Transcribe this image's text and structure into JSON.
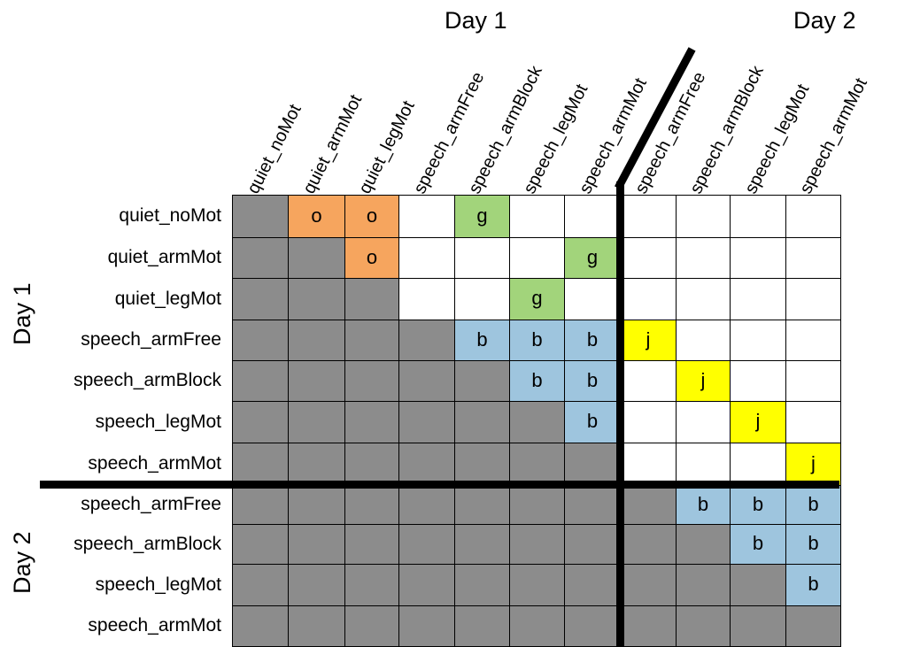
{
  "day_titles": {
    "top_day1": "Day 1",
    "top_day2": "Day 2",
    "left_day1": "Day 1",
    "left_day2": "Day 2"
  },
  "columns": [
    "quiet_noMot",
    "quiet_armMot",
    "quiet_legMot",
    "speech_armFree",
    "speech_armBlock",
    "speech_legMot",
    "speech_armMot",
    "speech_armFree",
    "speech_armBlock",
    "speech_legMot",
    "speech_armMot"
  ],
  "rows": [
    "quiet_noMot",
    "quiet_armMot",
    "quiet_legMot",
    "speech_armFree",
    "speech_armBlock",
    "speech_legMot",
    "speech_armMot",
    "speech_armFree",
    "speech_armBlock",
    "speech_legMot",
    "speech_armMot"
  ],
  "colors": {
    "gray": "#8c8c8c",
    "white": "#ffffff",
    "o": "#f6a55e",
    "g": "#a2d47b",
    "b": "#9ec5de",
    "j": "#ffff00"
  },
  "matrix": [
    [
      "x",
      "o",
      "o",
      "",
      "g",
      "",
      "",
      "",
      "",
      "",
      ""
    ],
    [
      "x",
      "x",
      "o",
      "",
      "",
      "",
      "g",
      "",
      "",
      "",
      ""
    ],
    [
      "x",
      "x",
      "x",
      "",
      "",
      "g",
      "",
      "",
      "",
      "",
      ""
    ],
    [
      "x",
      "x",
      "x",
      "x",
      "b",
      "b",
      "b",
      "j",
      "",
      "",
      ""
    ],
    [
      "x",
      "x",
      "x",
      "x",
      "x",
      "b",
      "b",
      "",
      "j",
      "",
      ""
    ],
    [
      "x",
      "x",
      "x",
      "x",
      "x",
      "x",
      "b",
      "",
      "",
      "j",
      ""
    ],
    [
      "x",
      "x",
      "x",
      "x",
      "x",
      "x",
      "x",
      "",
      "",
      "",
      "j"
    ],
    [
      "x",
      "x",
      "x",
      "x",
      "x",
      "x",
      "x",
      "x",
      "b",
      "b",
      "b"
    ],
    [
      "x",
      "x",
      "x",
      "x",
      "x",
      "x",
      "x",
      "x",
      "x",
      "b",
      "b"
    ],
    [
      "x",
      "x",
      "x",
      "x",
      "x",
      "x",
      "x",
      "x",
      "x",
      "x",
      "b"
    ],
    [
      "x",
      "x",
      "x",
      "x",
      "x",
      "x",
      "x",
      "x",
      "x",
      "x",
      "x"
    ]
  ]
}
